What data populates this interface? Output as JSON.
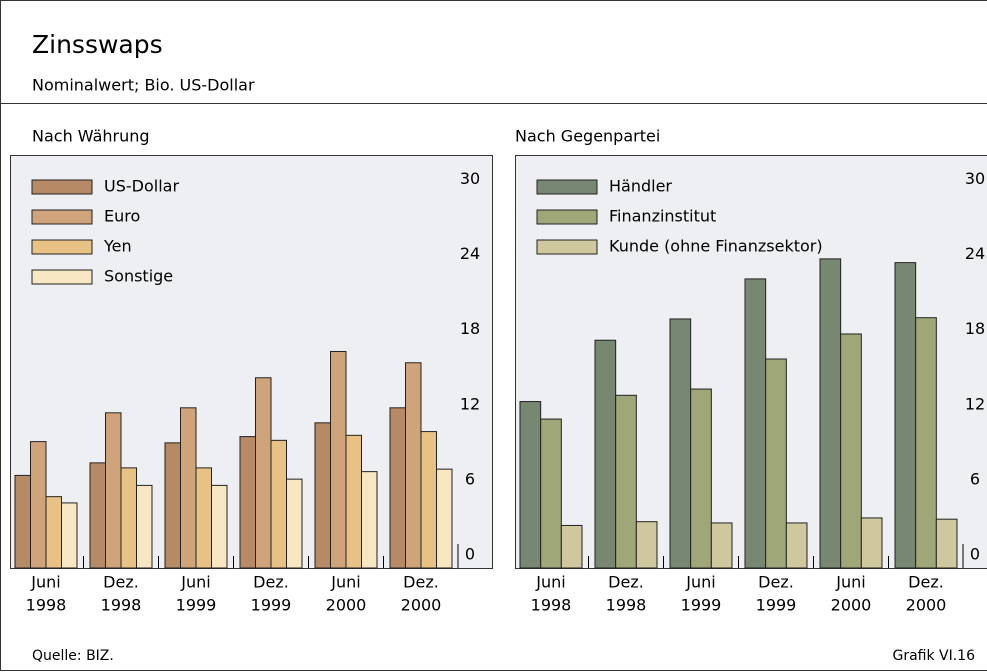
{
  "header": {
    "title": "Zinsswaps",
    "subtitle": "Nominalwert; Bio. US-Dollar"
  },
  "footer": {
    "source": "Quelle: BIZ.",
    "label": "Grafik VI.16"
  },
  "chart_data": [
    {
      "type": "bar",
      "title": "Nach Währung",
      "categories": [
        [
          "Juni",
          "1998"
        ],
        [
          "Dez.",
          "1998"
        ],
        [
          "Juni",
          "1999"
        ],
        [
          "Dez.",
          "1999"
        ],
        [
          "Juni",
          "2000"
        ],
        [
          "Dez.",
          "2000"
        ]
      ],
      "series": [
        {
          "name": "US-Dollar",
          "color": "#b58a64",
          "values": [
            7.4,
            8.4,
            10.0,
            10.5,
            11.6,
            12.8
          ]
        },
        {
          "name": "Euro",
          "color": "#cfa47a",
          "values": [
            10.1,
            12.4,
            12.8,
            15.2,
            17.3,
            16.4
          ]
        },
        {
          "name": "Yen",
          "color": "#e8c285",
          "values": [
            5.7,
            8.0,
            8.0,
            10.2,
            10.6,
            10.9
          ]
        },
        {
          "name": "Sonstige",
          "color": "#f6e6c2",
          "values": [
            5.2,
            6.6,
            6.6,
            7.1,
            7.7,
            7.9
          ]
        }
      ],
      "ylim": [
        0,
        33
      ],
      "yticks": [
        0,
        6,
        12,
        18,
        24,
        30
      ],
      "legend": "upper left"
    },
    {
      "type": "bar",
      "title": "Nach Gegenpartei",
      "categories": [
        [
          "Juni",
          "1998"
        ],
        [
          "Dez.",
          "1998"
        ],
        [
          "Juni",
          "1999"
        ],
        [
          "Dez.",
          "1999"
        ],
        [
          "Juni",
          "2000"
        ],
        [
          "Dez.",
          "2000"
        ]
      ],
      "series": [
        {
          "name": "Händler",
          "color": "#788771",
          "values": [
            13.3,
            18.2,
            19.9,
            23.1,
            24.7,
            24.4
          ]
        },
        {
          "name": "Finanzinstitut",
          "color": "#9fa779",
          "values": [
            11.9,
            13.8,
            14.3,
            16.7,
            18.7,
            20.0
          ]
        },
        {
          "name": "Kunde (ohne Finanzsektor)",
          "color": "#cfc89f",
          "values": [
            3.4,
            3.7,
            3.6,
            3.6,
            4.0,
            3.9
          ]
        }
      ],
      "ylim": [
        0,
        33
      ],
      "yticks": [
        0,
        6,
        12,
        18,
        24,
        30
      ],
      "legend": "upper left"
    }
  ]
}
